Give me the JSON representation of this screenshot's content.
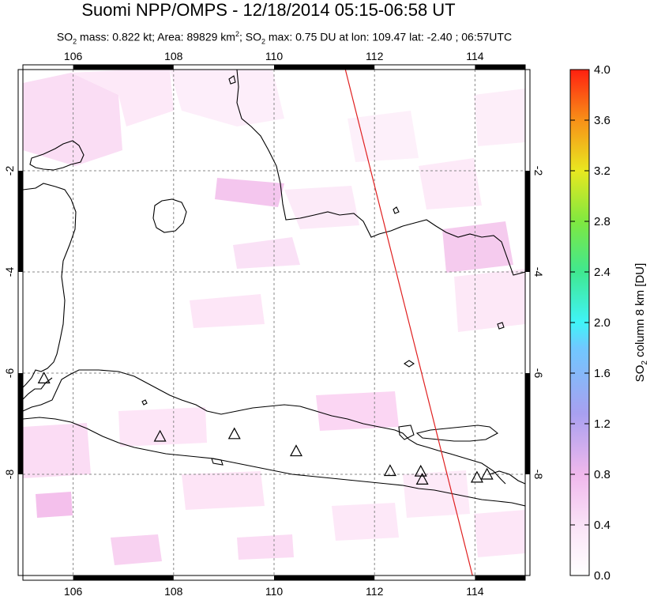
{
  "header": {
    "title": "Suomi NPP/OMPS - 12/18/2014 05:15-06:58 UT",
    "subtitle_parts": {
      "p1": "SO",
      "p1_sub": "2",
      "p2": " mass: 0.822 kt; Area: 89829 km",
      "p2_sup": "2",
      "p3": "; SO",
      "p3_sub": "2",
      "p4": " max: 0.75 DU at lon: 109.47 lat: -2.40 ; 06:57UTC"
    }
  },
  "map": {
    "lon_range": [
      105,
      115
    ],
    "lat_range": [
      -10,
      0
    ],
    "lon_ticks": [
      {
        "value": 106,
        "label": "106"
      },
      {
        "value": 108,
        "label": "108"
      },
      {
        "value": 110,
        "label": "110"
      },
      {
        "value": 112,
        "label": "112"
      },
      {
        "value": 114,
        "label": "114"
      }
    ],
    "lat_ticks": [
      {
        "value": -2,
        "label": "-2"
      },
      {
        "value": -4,
        "label": "-4"
      },
      {
        "value": -6,
        "label": "-6"
      },
      {
        "value": -8,
        "label": "-8"
      }
    ],
    "grid": true,
    "volcanoes": [
      {
        "lon": 105.42,
        "lat": -6.1
      },
      {
        "lon": 107.73,
        "lat": -7.25
      },
      {
        "lon": 109.21,
        "lat": -7.2
      },
      {
        "lon": 110.44,
        "lat": -7.54
      },
      {
        "lon": 112.31,
        "lat": -7.93
      },
      {
        "lon": 112.92,
        "lat": -7.94
      },
      {
        "lon": 112.95,
        "lat": -8.1
      },
      {
        "lon": 114.04,
        "lat": -8.06
      },
      {
        "lon": 114.24,
        "lat": -8.0
      }
    ],
    "orbit_track": [
      {
        "lon": 111.42,
        "lat": 0.0
      },
      {
        "lon": 113.95,
        "lat": -10.0
      }
    ],
    "colors": {
      "land_outline": "#000000",
      "grid": "#888888",
      "orbit_track": "#e02020"
    }
  },
  "colorbar": {
    "label_main": "SO",
    "label_sub": "2",
    "label_rest": " column 8 km [DU]",
    "min": 0.0,
    "max": 4.0,
    "ticks": [
      {
        "value": 0.0,
        "label": "0.0"
      },
      {
        "value": 0.4,
        "label": "0.4"
      },
      {
        "value": 0.8,
        "label": "0.8"
      },
      {
        "value": 1.2,
        "label": "1.2"
      },
      {
        "value": 1.6,
        "label": "1.6"
      },
      {
        "value": 2.0,
        "label": "2.0"
      },
      {
        "value": 2.4,
        "label": "2.4"
      },
      {
        "value": 2.8,
        "label": "2.8"
      },
      {
        "value": 3.2,
        "label": "3.2"
      },
      {
        "value": 3.6,
        "label": "3.6"
      },
      {
        "value": 4.0,
        "label": "4.0"
      }
    ],
    "gradient_stops": [
      "#ffffff",
      "#f7c8f0",
      "#b8a8f0",
      "#80c8ff",
      "#40f0f8",
      "#60e070",
      "#c8f020",
      "#f8d020",
      "#f88010",
      "#ff2010"
    ]
  }
}
